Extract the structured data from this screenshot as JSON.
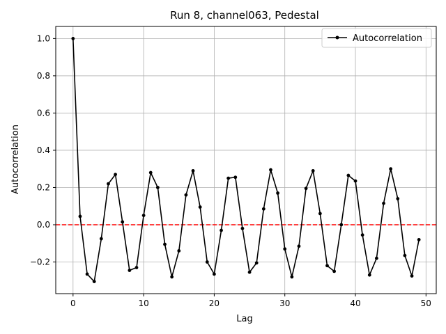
{
  "chart_data": {
    "type": "line",
    "title": "Run 8, channel063, Pedestal",
    "xlabel": "Lag",
    "ylabel": "Autocorrelation",
    "xlim": [
      -2.45,
      51.45
    ],
    "ylim": [
      -0.37,
      1.065
    ],
    "xticks": [
      0,
      10,
      20,
      30,
      40,
      50
    ],
    "yticks": [
      -0.2,
      0.0,
      0.2,
      0.4,
      0.6,
      0.8,
      1.0
    ],
    "grid": true,
    "legend_position": "top-right",
    "reference_line": {
      "y": 0.0,
      "color": "#ff0000",
      "style": "dashed"
    },
    "series": [
      {
        "name": "Autocorrelation",
        "color": "#000000",
        "marker": "circle",
        "x": [
          0,
          1,
          2,
          3,
          4,
          5,
          6,
          7,
          8,
          9,
          10,
          11,
          12,
          13,
          14,
          15,
          16,
          17,
          18,
          19,
          20,
          21,
          22,
          23,
          24,
          25,
          26,
          27,
          28,
          29,
          30,
          31,
          32,
          33,
          34,
          35,
          36,
          37,
          38,
          39,
          40,
          41,
          42,
          43,
          44,
          45,
          46,
          47,
          48,
          49
        ],
        "y": [
          1.0,
          0.045,
          -0.265,
          -0.305,
          -0.075,
          0.22,
          0.27,
          0.015,
          -0.245,
          -0.23,
          0.05,
          0.28,
          0.2,
          -0.105,
          -0.28,
          -0.14,
          0.16,
          0.29,
          0.095,
          -0.2,
          -0.265,
          -0.03,
          0.25,
          0.255,
          -0.02,
          -0.255,
          -0.205,
          0.085,
          0.295,
          0.17,
          -0.13,
          -0.28,
          -0.115,
          0.195,
          0.29,
          0.06,
          -0.22,
          -0.25,
          0.0,
          0.265,
          0.235,
          -0.055,
          -0.27,
          -0.18,
          0.115,
          0.3,
          0.14,
          -0.165,
          -0.275,
          -0.08
        ]
      }
    ]
  }
}
